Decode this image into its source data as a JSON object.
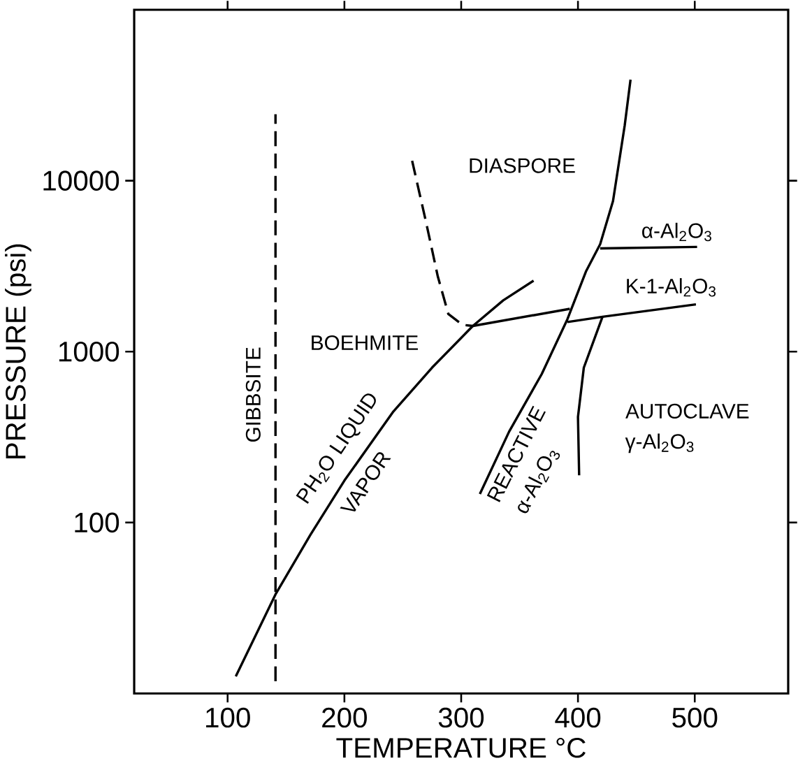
{
  "chart_data": {
    "type": "line",
    "xlabel": "TEMPERATURE °C",
    "ylabel": "PRESSURE (psi)",
    "log": "y",
    "xlim": [
      20,
      580
    ],
    "ylim": [
      10,
      100000
    ],
    "xticks": [
      100,
      200,
      300,
      400,
      500
    ],
    "yticks": [
      100,
      1000,
      10000
    ],
    "series": [
      {
        "color": "#000000",
        "line_style": "solid",
        "x": [
          107,
          141,
          171,
          200,
          242,
          275,
          310,
          336,
          362
        ],
        "values": [
          12.6,
          38,
          85,
          176,
          447,
          805,
          1413,
          1995,
          2600
        ]
      },
      {
        "color": "#000000",
        "line_style": "dashed",
        "x": [
          141,
          141
        ],
        "values": [
          11.8,
          24500
        ]
      },
      {
        "color": "#000000",
        "line_style": "dashed",
        "x": [
          258,
          270,
          280,
          289,
          301,
          310
        ],
        "values": [
          13070,
          5690,
          2750,
          1660,
          1436,
          1413
        ]
      },
      {
        "color": "#000000",
        "line_style": "solid",
        "x": [
          310,
          393
        ],
        "values": [
          1413,
          1780
        ]
      },
      {
        "color": "#000000",
        "line_style": "solid",
        "x": [
          391,
          421,
          501
        ],
        "values": [
          1490,
          1600,
          1890
        ]
      },
      {
        "color": "#000000",
        "line_style": "solid",
        "x": [
          316,
          341,
          369,
          391,
          407,
          419,
          430,
          440,
          445
        ],
        "values": [
          147,
          340,
          740,
          1550,
          2960,
          4250,
          7600,
          21000,
          39000
        ]
      },
      {
        "color": "#000000",
        "line_style": "solid",
        "x": [
          419,
          502
        ],
        "values": [
          4020,
          4100
        ]
      },
      {
        "color": "#000000",
        "line_style": "solid",
        "x": [
          401,
          400,
          405,
          421
        ],
        "values": [
          189,
          415,
          805,
          1600
        ]
      }
    ],
    "annotations": [
      "DIASPORE",
      "α-Al$_{2}$O$_{3}$",
      "K-1-Al$_{2}$O$_{3}$",
      "BOEHMITE",
      "GIBBSITE",
      "PH$_{2}$O LIQUID",
      "VAPOR",
      "REACTIVE",
      "α-Al$_{2}$O$_{3}$",
      "AUTOCLAVE",
      "γ-Al$_{2}$O$_{3}$"
    ]
  }
}
